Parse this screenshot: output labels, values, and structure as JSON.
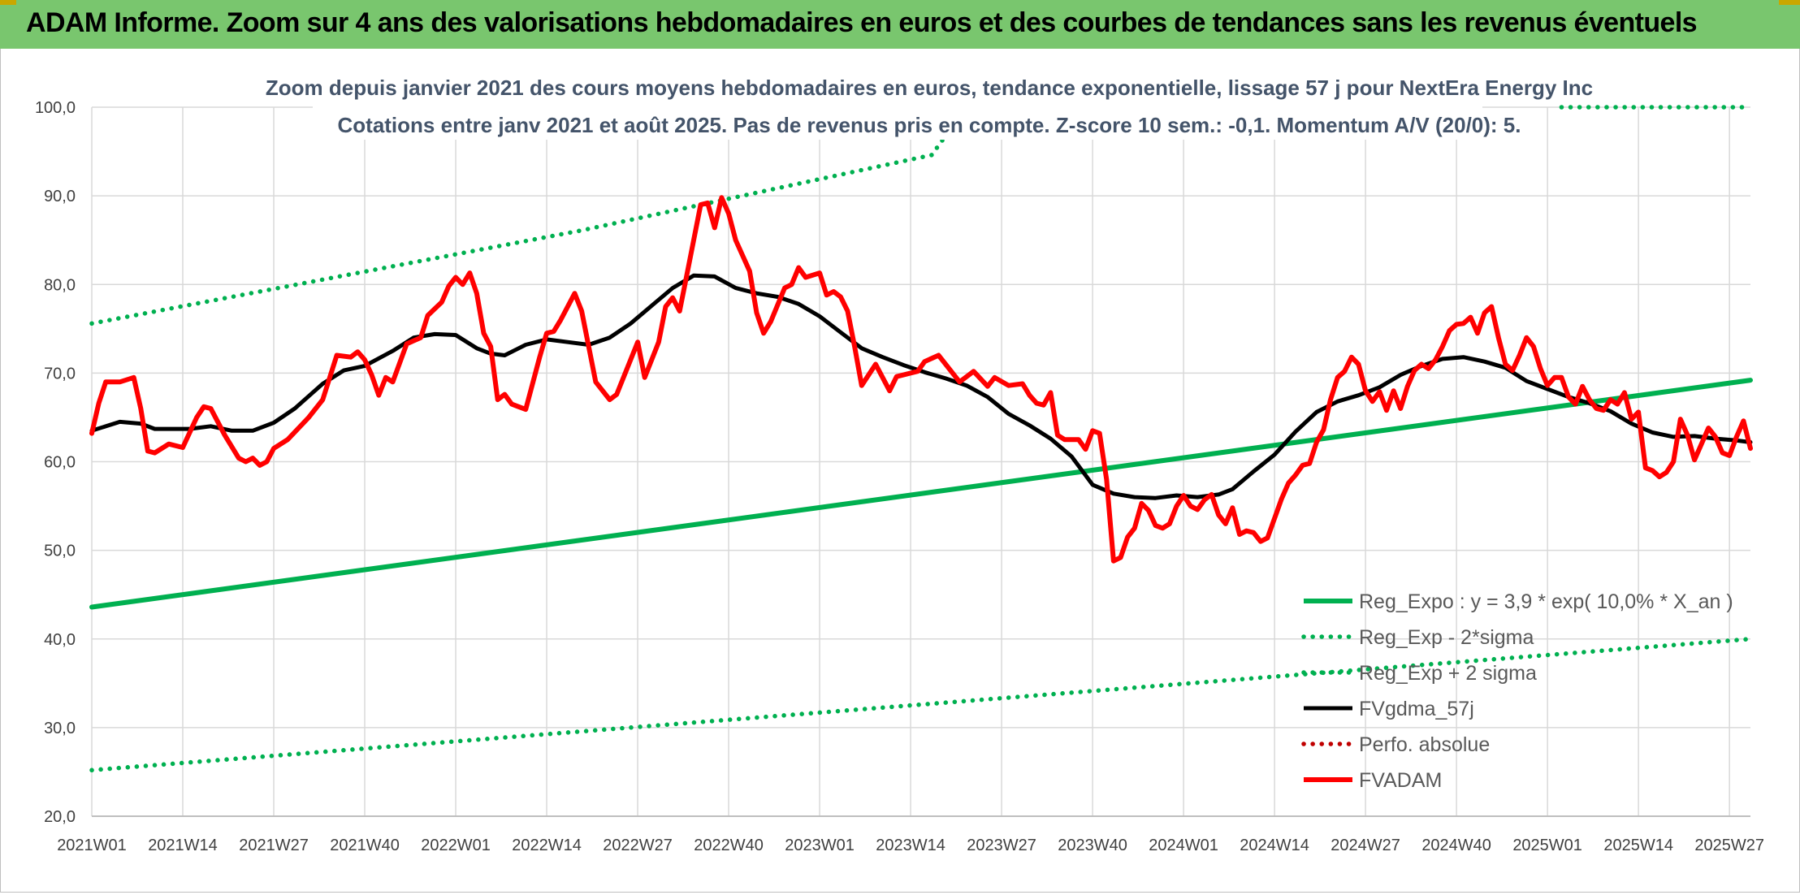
{
  "header": {
    "title": "ADAM Informe. Zoom sur 4 ans des valorisations hebdomadaires en euros et des courbes de tendances sans les revenus éventuels"
  },
  "colors": {
    "banner": "#79c66e",
    "trend_green": "#00b050",
    "dotted_green": "#00b050",
    "moving_avg": "#000000",
    "price_red": "#ff0000",
    "perf_red": "#c00000",
    "grid": "#d9d9d9",
    "title_text": "#44546a"
  },
  "chart_data": {
    "type": "line",
    "title": [
      "Zoom depuis janvier 2021 des cours moyens hebdomadaires en euros, tendance exponentielle, lissage 57 j pour NextEra Energy Inc",
      "Cotations entre janv 2021 et août 2025. Pas de revenus pris en compte. Z-score 10 sem.: -0,1. Momentum A/V (20/0): 5."
    ],
    "xlabel": "",
    "ylabel": "",
    "ylim": [
      20,
      100
    ],
    "y_ticks": [
      "20,0",
      "30,0",
      "40,0",
      "50,0",
      "60,0",
      "70,0",
      "80,0",
      "90,0",
      "100,0"
    ],
    "x_ticks": [
      "2021W01",
      "2021W14",
      "2021W27",
      "2021W40",
      "2022W01",
      "2022W14",
      "2022W27",
      "2022W40",
      "2023W01",
      "2023W14",
      "2023W27",
      "2023W40",
      "2024W01",
      "2024W14",
      "2024W27",
      "2024W40",
      "2025W01",
      "2025W14",
      "2025W27"
    ],
    "x_tick_weeks": [
      0,
      13,
      26,
      39,
      52,
      65,
      78,
      91,
      104,
      117,
      130,
      143,
      156,
      169,
      182,
      195,
      208,
      221,
      234
    ],
    "x_range_weeks": [
      0,
      237
    ],
    "grid": true,
    "legend_position": "bottom-right",
    "series": [
      {
        "name": "Reg_Expo : y = 3,9 * exp( 10,0% *  X_an )",
        "style": "solid-thick",
        "color": "#00b050",
        "points": [
          [
            0,
            43.6
          ],
          [
            237,
            69.2
          ]
        ]
      },
      {
        "name": "Reg_Exp - 2*sigma",
        "style": "dotted",
        "color": "#00b050",
        "points": [
          [
            0,
            25.2
          ],
          [
            237,
            40.0
          ]
        ]
      },
      {
        "name": "Reg_Exp + 2 sigma",
        "style": "dotted",
        "color": "#00b050",
        "points": [
          [
            0,
            75.6
          ],
          [
            70,
            86.1
          ],
          [
            120,
            94.6
          ],
          [
            125,
            100.0
          ]
        ],
        "extra_segment": [
          [
            210,
            100.0
          ],
          [
            237,
            100.0
          ]
        ]
      },
      {
        "name": "FVgdma_57j",
        "style": "solid",
        "color": "#000000",
        "points": [
          [
            0,
            63.5
          ],
          [
            4,
            64.5
          ],
          [
            7,
            64.3
          ],
          [
            9,
            63.7
          ],
          [
            14,
            63.7
          ],
          [
            17,
            64.0
          ],
          [
            20,
            63.5
          ],
          [
            23,
            63.5
          ],
          [
            26,
            64.4
          ],
          [
            29,
            66.0
          ],
          [
            33,
            68.8
          ],
          [
            36,
            70.3
          ],
          [
            39,
            70.8
          ],
          [
            43,
            72.5
          ],
          [
            46,
            74.0
          ],
          [
            49,
            74.4
          ],
          [
            52,
            74.3
          ],
          [
            55,
            72.8
          ],
          [
            57,
            72.2
          ],
          [
            59,
            72.0
          ],
          [
            62,
            73.2
          ],
          [
            65,
            73.8
          ],
          [
            68,
            73.5
          ],
          [
            71,
            73.2
          ],
          [
            74,
            74.0
          ],
          [
            77,
            75.6
          ],
          [
            80,
            77.6
          ],
          [
            83,
            79.6
          ],
          [
            86,
            81.0
          ],
          [
            89,
            80.9
          ],
          [
            92,
            79.6
          ],
          [
            95,
            79.0
          ],
          [
            98,
            78.6
          ],
          [
            101,
            77.8
          ],
          [
            104,
            76.4
          ],
          [
            107,
            74.6
          ],
          [
            110,
            72.8
          ],
          [
            113,
            71.8
          ],
          [
            116,
            70.9
          ],
          [
            119,
            70.1
          ],
          [
            122,
            69.4
          ],
          [
            125,
            68.6
          ],
          [
            128,
            67.3
          ],
          [
            131,
            65.4
          ],
          [
            134,
            64.1
          ],
          [
            137,
            62.6
          ],
          [
            140,
            60.6
          ],
          [
            143,
            57.4
          ],
          [
            146,
            56.4
          ],
          [
            149,
            56.0
          ],
          [
            152,
            55.9
          ],
          [
            155,
            56.2
          ],
          [
            158,
            56.0
          ],
          [
            161,
            56.3
          ],
          [
            163,
            56.9
          ],
          [
            166,
            58.9
          ],
          [
            169,
            60.8
          ],
          [
            172,
            63.4
          ],
          [
            175,
            65.6
          ],
          [
            178,
            66.8
          ],
          [
            181,
            67.5
          ],
          [
            184,
            68.4
          ],
          [
            187,
            69.8
          ],
          [
            190,
            70.8
          ],
          [
            193,
            71.6
          ],
          [
            196,
            71.8
          ],
          [
            199,
            71.3
          ],
          [
            202,
            70.6
          ],
          [
            205,
            69.1
          ],
          [
            208,
            68.2
          ],
          [
            211,
            67.3
          ],
          [
            214,
            66.6
          ],
          [
            217,
            65.7
          ],
          [
            220,
            64.3
          ],
          [
            223,
            63.3
          ],
          [
            226,
            62.8
          ],
          [
            229,
            62.9
          ],
          [
            232,
            62.6
          ],
          [
            235,
            62.4
          ],
          [
            237,
            62.2
          ]
        ]
      },
      {
        "name": "Perfo. absolue",
        "style": "dotted",
        "color": "#c00000",
        "points": []
      },
      {
        "name": "FVADAM",
        "style": "solid-thick",
        "color": "#ff0000",
        "points": [
          [
            0,
            63.2
          ],
          [
            1,
            66.6
          ],
          [
            2,
            69.0
          ],
          [
            4,
            69.0
          ],
          [
            6,
            69.5
          ],
          [
            7,
            66.0
          ],
          [
            8,
            61.2
          ],
          [
            9,
            61.0
          ],
          [
            11,
            62.0
          ],
          [
            13,
            61.6
          ],
          [
            15,
            65.0
          ],
          [
            16,
            66.2
          ],
          [
            17,
            66.0
          ],
          [
            19,
            63.0
          ],
          [
            21,
            60.4
          ],
          [
            22,
            60.0
          ],
          [
            23,
            60.4
          ],
          [
            24,
            59.6
          ],
          [
            25,
            60.0
          ],
          [
            26,
            61.5
          ],
          [
            28,
            62.5
          ],
          [
            31,
            65.0
          ],
          [
            33,
            67.0
          ],
          [
            35,
            72.0
          ],
          [
            37,
            71.8
          ],
          [
            38,
            72.4
          ],
          [
            39,
            71.5
          ],
          [
            40,
            69.8
          ],
          [
            41,
            67.5
          ],
          [
            42,
            69.5
          ],
          [
            43,
            69.0
          ],
          [
            45,
            73.3
          ],
          [
            47,
            74.0
          ],
          [
            48,
            76.5
          ],
          [
            50,
            78.0
          ],
          [
            51,
            79.8
          ],
          [
            52,
            80.8
          ],
          [
            53,
            80.0
          ],
          [
            54,
            81.3
          ],
          [
            55,
            79.0
          ],
          [
            56,
            74.5
          ],
          [
            57,
            73.0
          ],
          [
            58,
            67.0
          ],
          [
            59,
            67.6
          ],
          [
            60,
            66.5
          ],
          [
            62,
            65.9
          ],
          [
            64,
            71.8
          ],
          [
            65,
            74.5
          ],
          [
            66,
            74.7
          ],
          [
            67,
            76.0
          ],
          [
            69,
            79.0
          ],
          [
            70,
            77.0
          ],
          [
            72,
            69.0
          ],
          [
            74,
            67.0
          ],
          [
            75,
            67.6
          ],
          [
            78,
            73.5
          ],
          [
            79,
            69.5
          ],
          [
            81,
            73.5
          ],
          [
            82,
            77.5
          ],
          [
            83,
            78.5
          ],
          [
            84,
            77.0
          ],
          [
            85,
            81.0
          ],
          [
            86,
            85.0
          ],
          [
            87,
            89.0
          ],
          [
            88,
            89.2
          ],
          [
            89,
            86.4
          ],
          [
            90,
            89.8
          ],
          [
            91,
            88.0
          ],
          [
            92,
            85.0
          ],
          [
            94,
            81.5
          ],
          [
            95,
            76.8
          ],
          [
            96,
            74.5
          ],
          [
            97,
            75.8
          ],
          [
            99,
            79.6
          ],
          [
            100,
            80.0
          ],
          [
            101,
            81.9
          ],
          [
            102,
            80.8
          ],
          [
            104,
            81.3
          ],
          [
            105,
            78.8
          ],
          [
            106,
            79.2
          ],
          [
            107,
            78.6
          ],
          [
            108,
            77.0
          ],
          [
            109,
            73.0
          ],
          [
            110,
            68.6
          ],
          [
            112,
            71.0
          ],
          [
            114,
            68.0
          ],
          [
            115,
            69.6
          ],
          [
            117,
            70.0
          ],
          [
            118,
            70.2
          ],
          [
            119,
            71.3
          ],
          [
            121,
            72.0
          ],
          [
            122,
            71.0
          ],
          [
            124,
            69.0
          ],
          [
            126,
            70.2
          ],
          [
            128,
            68.5
          ],
          [
            129,
            69.5
          ],
          [
            131,
            68.6
          ],
          [
            133,
            68.8
          ],
          [
            134,
            67.5
          ],
          [
            135,
            66.6
          ],
          [
            136,
            66.4
          ],
          [
            137,
            67.8
          ],
          [
            138,
            63.0
          ],
          [
            139,
            62.5
          ],
          [
            141,
            62.5
          ],
          [
            142,
            61.4
          ],
          [
            143,
            63.5
          ],
          [
            144,
            63.2
          ],
          [
            145,
            58.0
          ],
          [
            146,
            48.8
          ],
          [
            147,
            49.2
          ],
          [
            148,
            51.5
          ],
          [
            149,
            52.5
          ],
          [
            150,
            55.3
          ],
          [
            151,
            54.5
          ],
          [
            152,
            52.8
          ],
          [
            153,
            52.5
          ],
          [
            154,
            53.0
          ],
          [
            155,
            55.0
          ],
          [
            156,
            56.2
          ],
          [
            157,
            55.0
          ],
          [
            158,
            54.6
          ],
          [
            159,
            55.7
          ],
          [
            160,
            56.3
          ],
          [
            161,
            54.0
          ],
          [
            162,
            53.0
          ],
          [
            163,
            54.8
          ],
          [
            164,
            51.8
          ],
          [
            165,
            52.2
          ],
          [
            166,
            52.0
          ],
          [
            167,
            51.0
          ],
          [
            168,
            51.4
          ],
          [
            169,
            53.6
          ],
          [
            170,
            55.8
          ],
          [
            171,
            57.6
          ],
          [
            172,
            58.5
          ],
          [
            173,
            59.6
          ],
          [
            174,
            59.8
          ],
          [
            175,
            62.2
          ],
          [
            176,
            63.6
          ],
          [
            177,
            67.0
          ],
          [
            178,
            69.5
          ],
          [
            179,
            70.2
          ],
          [
            180,
            71.8
          ],
          [
            181,
            71.0
          ],
          [
            182,
            68.0
          ],
          [
            183,
            66.8
          ],
          [
            184,
            67.9
          ],
          [
            185,
            65.8
          ],
          [
            186,
            68.0
          ],
          [
            187,
            66.0
          ],
          [
            188,
            68.5
          ],
          [
            189,
            70.3
          ],
          [
            190,
            71.0
          ],
          [
            191,
            70.5
          ],
          [
            192,
            71.5
          ],
          [
            193,
            73.0
          ],
          [
            194,
            74.8
          ],
          [
            195,
            75.5
          ],
          [
            196,
            75.6
          ],
          [
            197,
            76.3
          ],
          [
            198,
            74.5
          ],
          [
            199,
            76.8
          ],
          [
            200,
            77.5
          ],
          [
            201,
            74.0
          ],
          [
            202,
            71.0
          ],
          [
            203,
            70.3
          ],
          [
            204,
            72.0
          ],
          [
            205,
            74.0
          ],
          [
            206,
            73.0
          ],
          [
            207,
            70.5
          ],
          [
            208,
            68.6
          ],
          [
            209,
            69.5
          ],
          [
            210,
            69.5
          ],
          [
            211,
            67.3
          ],
          [
            212,
            66.5
          ],
          [
            213,
            68.5
          ],
          [
            214,
            67.0
          ],
          [
            215,
            66.0
          ],
          [
            216,
            65.8
          ],
          [
            217,
            67.0
          ],
          [
            218,
            66.5
          ],
          [
            219,
            67.8
          ],
          [
            220,
            64.8
          ],
          [
            221,
            65.6
          ],
          [
            222,
            59.3
          ],
          [
            223,
            59.0
          ],
          [
            224,
            58.3
          ],
          [
            225,
            58.8
          ],
          [
            226,
            60.0
          ],
          [
            227,
            64.8
          ],
          [
            228,
            63.0
          ],
          [
            229,
            60.2
          ],
          [
            230,
            62.0
          ],
          [
            231,
            63.8
          ],
          [
            232,
            62.8
          ],
          [
            233,
            61.0
          ],
          [
            234,
            60.7
          ],
          [
            235,
            62.8
          ],
          [
            236,
            64.6
          ],
          [
            237,
            61.5
          ]
        ]
      }
    ]
  }
}
